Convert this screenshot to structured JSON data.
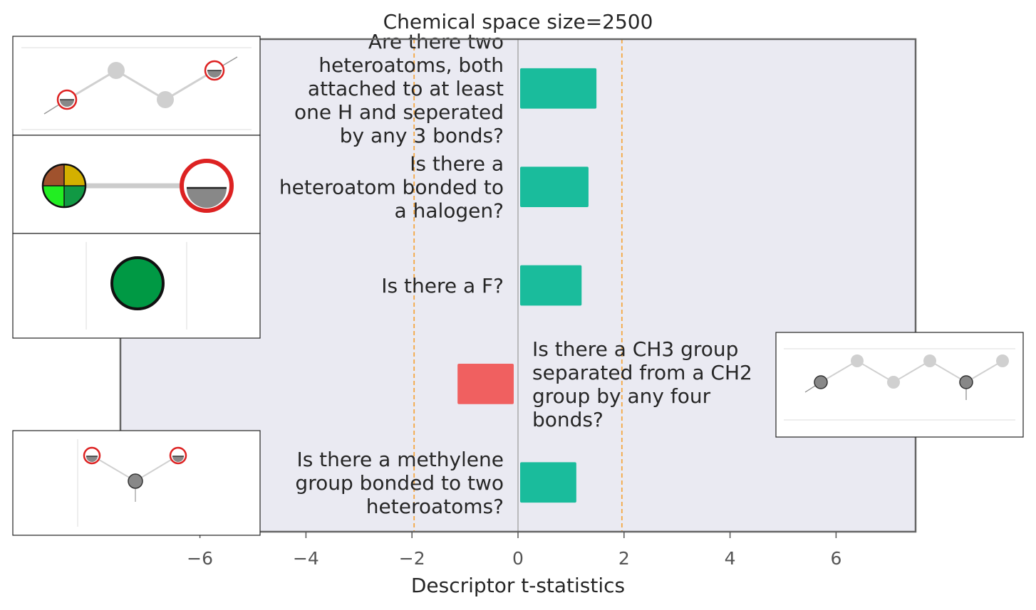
{
  "chart_data": {
    "type": "bar",
    "orientation": "horizontal",
    "title": "Chemical space size=2500",
    "xlabel": "Descriptor t-statistics",
    "xlim": [
      -7.5,
      7.5
    ],
    "xticks": [
      -6,
      -4,
      -2,
      0,
      2,
      4,
      6
    ],
    "xtick_labels": [
      "−6",
      "−4",
      "−2",
      "0",
      "2",
      "4",
      "6"
    ],
    "threshold_lines": [
      -1.96,
      1.96
    ],
    "grid": false,
    "colors": {
      "positive": "#1abc9c",
      "negative": "#f06060",
      "threshold": "#f5a742",
      "background": "#eaeaf2",
      "frame": "#666666"
    },
    "bars": [
      {
        "label": [
          "Are there two",
          "heteroatoms, both",
          "attached to at least",
          "one H and seperated",
          "by any 3 bonds?"
        ],
        "value": 1.48
      },
      {
        "label": [
          "Is there a",
          "heteroatom bonded to",
          "a halogen?"
        ],
        "value": 1.33
      },
      {
        "label": [
          "Is there a F?"
        ],
        "value": 1.2
      },
      {
        "label": [
          "Is there a CH3 group",
          "separated from a CH2",
          "group by any four",
          "bonds?"
        ],
        "value": -1.1
      },
      {
        "label": [
          "Is there a methylene",
          "group bonded to two",
          "heteroatoms?"
        ],
        "value": 1.1
      }
    ],
    "molecule_images": [
      {
        "bar": 0,
        "side": "left",
        "depicts": "four-atom-chain-two-OH"
      },
      {
        "bar": 1,
        "side": "left",
        "depicts": "halogen-bonded-heteroatom"
      },
      {
        "bar": 2,
        "side": "left",
        "depicts": "fluorine-atom"
      },
      {
        "bar": 3,
        "side": "right",
        "depicts": "CH3-chain-CH2"
      },
      {
        "bar": 4,
        "side": "left",
        "depicts": "methylene-two-heteroatoms"
      }
    ]
  }
}
